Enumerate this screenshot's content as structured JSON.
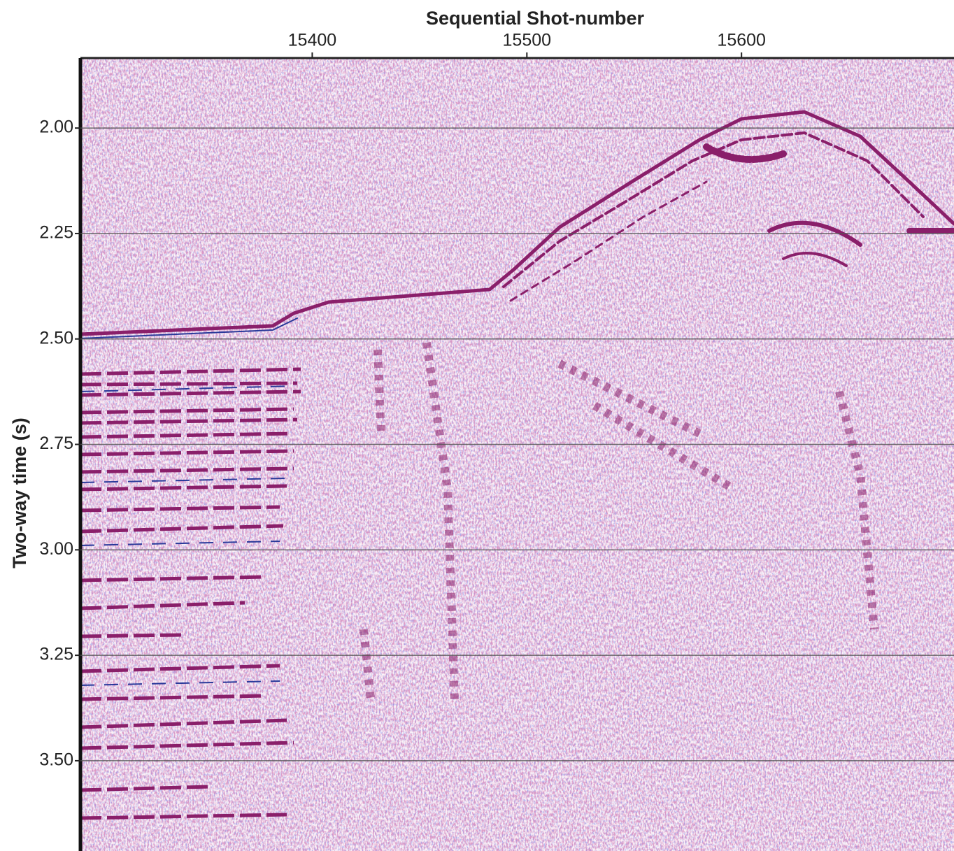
{
  "chart_data": {
    "type": "image",
    "xlabel": "Sequential Shot-number",
    "ylabel": "Two-way time (s)",
    "xlim": [
      15292,
      15699
    ],
    "xticks": [
      15400,
      15500,
      15600
    ],
    "ylim": [
      1.834,
      3.714
    ],
    "y_inverted": true,
    "yticks": [
      {
        "value": 2,
        "label": "2.00"
      },
      {
        "value": 2.25,
        "label": "2.25"
      },
      {
        "value": 2.5,
        "label": "2.50"
      },
      {
        "value": 2.75,
        "label": "2.75"
      },
      {
        "value": 3,
        "label": "3.00"
      },
      {
        "value": 3.25,
        "label": "3.25"
      },
      {
        "value": 3.5,
        "label": "3.50"
      }
    ],
    "grid": true
  }
}
